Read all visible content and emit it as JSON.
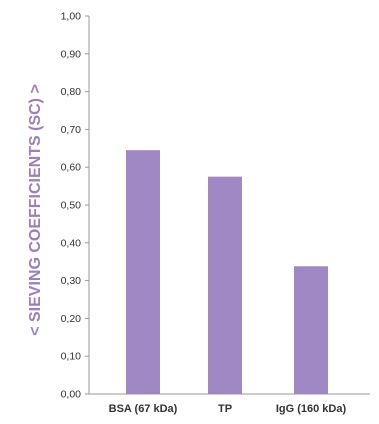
{
  "chart_data": {
    "type": "bar",
    "title": "",
    "xlabel": "",
    "ylabel": "< SIEVING COEFFICIENTS (SC) >",
    "categories": [
      "BSA (67 kDa)",
      "TP",
      "IgG (160 kDa)"
    ],
    "series": [
      {
        "values": [
          0.645,
          0.575,
          0.338
        ]
      }
    ],
    "ylim": [
      0,
      1
    ],
    "yticks": [
      "0,00",
      "0,10",
      "0,20",
      "0,30",
      "0,40",
      "0,50",
      "0,60",
      "0,70",
      "0,80",
      "0,90",
      "1,00"
    ],
    "grid": false,
    "legend": "none",
    "colors": {
      "bar": "#A088C4",
      "axis": "#9a9a9a",
      "ylabel": "#9B7FC0"
    }
  }
}
